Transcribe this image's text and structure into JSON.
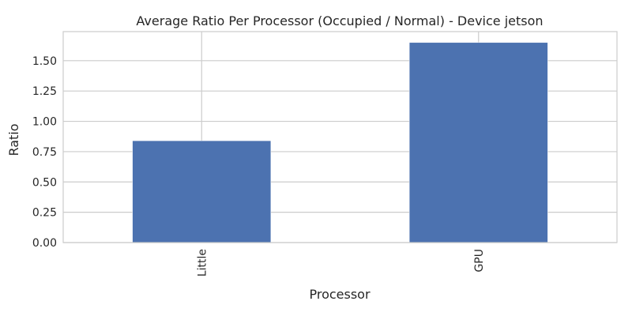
{
  "chart_data": {
    "type": "bar",
    "title": "Average Ratio Per Processor (Occupied / Normal) - Device jetson",
    "xlabel": "Processor",
    "ylabel": "Ratio",
    "categories": [
      "Little",
      "GPU"
    ],
    "values": [
      0.84,
      1.65
    ],
    "ylim": [
      0,
      1.74
    ],
    "yticks": [
      0.0,
      0.25,
      0.5,
      0.75,
      1.0,
      1.25,
      1.5
    ],
    "ytick_labels": [
      "0.00",
      "0.25",
      "0.50",
      "0.75",
      "1.00",
      "1.25",
      "1.50"
    ],
    "grid": true,
    "bar_color": "#4c72b0",
    "x_tick_rotation": "vertical"
  }
}
